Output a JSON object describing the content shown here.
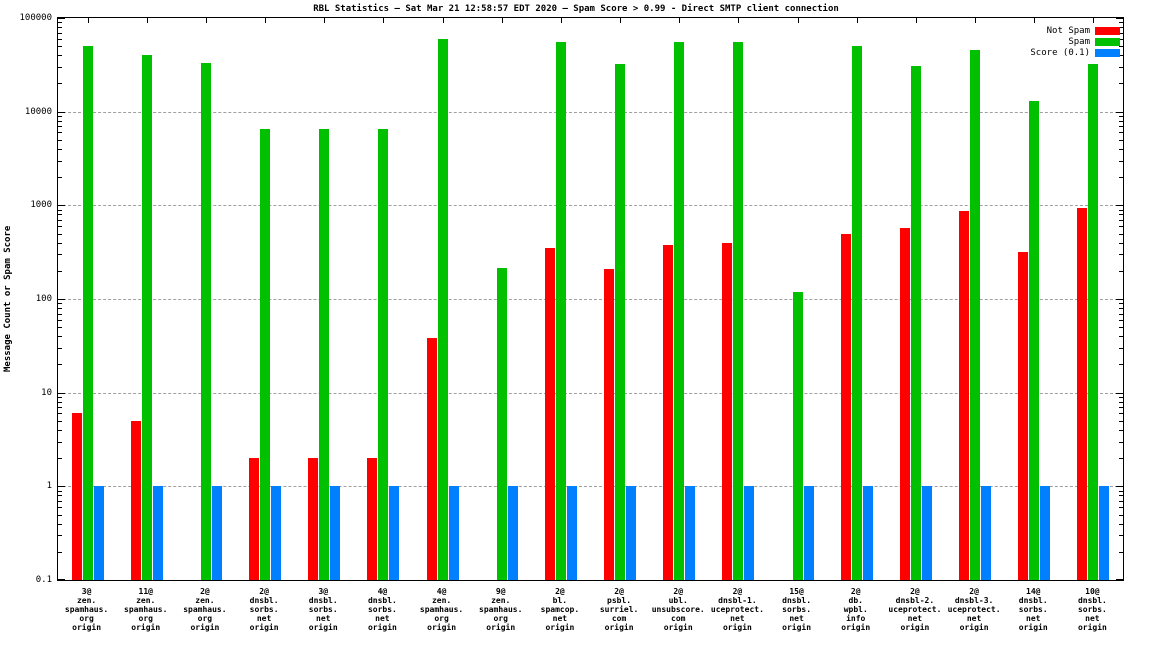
{
  "title": "RBL Statistics – Sat Mar 21 12:58:57 EDT 2020 – Spam Score > 0.99 - Direct SMTP client connection",
  "chart_data": {
    "type": "bar",
    "yscale": "log",
    "grid": "horizontal-dashed",
    "legend_position": "top-right-inside",
    "ylabel": "Message Count or Spam Score",
    "ylim": [
      0.1,
      100000
    ],
    "yticks": [
      {
        "value": 100000,
        "label": "100000"
      },
      {
        "value": 10000,
        "label": "10000"
      },
      {
        "value": 1000,
        "label": "1000"
      },
      {
        "value": 100,
        "label": "100"
      },
      {
        "value": 10,
        "label": "10"
      },
      {
        "value": 1,
        "label": "1"
      },
      {
        "value": 0.1,
        "label": "0.1"
      }
    ],
    "categories": [
      [
        "3@",
        "zen.",
        "spamhaus.",
        "org",
        "origin"
      ],
      [
        "11@",
        "zen.",
        "spamhaus.",
        "org",
        "origin"
      ],
      [
        "2@",
        "zen.",
        "spamhaus.",
        "org",
        "origin"
      ],
      [
        "2@",
        "dnsbl.",
        "sorbs.",
        "net",
        "origin"
      ],
      [
        "3@",
        "dnsbl.",
        "sorbs.",
        "net",
        "origin"
      ],
      [
        "4@",
        "dnsbl.",
        "sorbs.",
        "net",
        "origin"
      ],
      [
        "4@",
        "zen.",
        "spamhaus.",
        "org",
        "origin"
      ],
      [
        "9@",
        "zen.",
        "spamhaus.",
        "org",
        "origin"
      ],
      [
        "2@",
        "bl.",
        "spamcop.",
        "net",
        "origin"
      ],
      [
        "2@",
        "psbl.",
        "surriel.",
        "com",
        "origin"
      ],
      [
        "2@",
        "ubl.",
        "unsubscore.",
        "com",
        "origin"
      ],
      [
        "2@",
        "dnsbl-1.",
        "uceprotect.",
        "net",
        "origin"
      ],
      [
        "15@",
        "dnsbl.",
        "sorbs.",
        "net",
        "origin"
      ],
      [
        "2@",
        "db.",
        "wpbl.",
        "info",
        "origin"
      ],
      [
        "2@",
        "dnsbl-2.",
        "uceprotect.",
        "net",
        "origin"
      ],
      [
        "2@",
        "dnsbl-3.",
        "uceprotect.",
        "net",
        "origin"
      ],
      [
        "14@",
        "dnsbl.",
        "sorbs.",
        "net",
        "origin"
      ],
      [
        "10@",
        "dnsbl.",
        "sorbs.",
        "net",
        "origin"
      ]
    ],
    "series": [
      {
        "name": "Not Spam",
        "color": "#ff0000",
        "values": [
          6,
          5,
          null,
          2,
          2,
          2,
          38,
          null,
          350,
          210,
          380,
          400,
          null,
          500,
          580,
          880,
          320,
          930
        ]
      },
      {
        "name": "Spam",
        "color": "#00c000",
        "values": [
          50000,
          40000,
          33000,
          6500,
          6500,
          6500,
          60000,
          215,
          55000,
          32000,
          55000,
          55000,
          120,
          50000,
          31000,
          45000,
          13000,
          32000
        ]
      },
      {
        "name": "Score (0.1)",
        "color": "#0080ff",
        "values": [
          1,
          1,
          1,
          1,
          1,
          1,
          1,
          1,
          1,
          1,
          1,
          1,
          1,
          1,
          1,
          1,
          1,
          1
        ]
      }
    ]
  }
}
